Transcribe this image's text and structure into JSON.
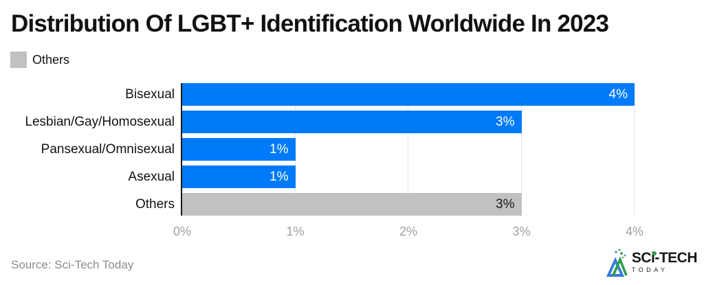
{
  "title": "Distribution Of LGBT+ Identification Worldwide In 2023",
  "legend": {
    "label": "Others",
    "swatch_color": "#c1c1c1"
  },
  "colors": {
    "bar_blue": "#017afa",
    "bar_gray": "#c1c1c1",
    "axis_line": "#1a1a1a",
    "gridline": "#e4e4e4",
    "tick_label": "#9e9e9e"
  },
  "chart_data": {
    "type": "bar",
    "orientation": "horizontal",
    "title": "Distribution Of LGBT+ Identification Worldwide In 2023",
    "categories": [
      "Bisexual",
      "Lesbian/Gay/Homosexual",
      "Pansexual/Omnisexual",
      "Asexual",
      "Others"
    ],
    "values": [
      4,
      3,
      1,
      1,
      3
    ],
    "value_labels": [
      "4%",
      "3%",
      "1%",
      "1%",
      "3%"
    ],
    "bar_colors": [
      "#017afa",
      "#017afa",
      "#017afa",
      "#017afa",
      "#c1c1c1"
    ],
    "value_label_colors": [
      "#ffffff",
      "#ffffff",
      "#ffffff",
      "#ffffff",
      "#1a1a1a"
    ],
    "x_ticks": [
      "0%",
      "1%",
      "2%",
      "3%",
      "4%"
    ],
    "xlim": [
      0,
      4
    ],
    "xlabel": "",
    "ylabel": "",
    "grid": "vertical-only",
    "legend_entries": [
      "Others"
    ],
    "legend_position": "top-left"
  },
  "footer": {
    "source": "Source: Sci-Tech Today",
    "logo_text": "SCi-TECH",
    "logo_subtext": "TODAY"
  }
}
